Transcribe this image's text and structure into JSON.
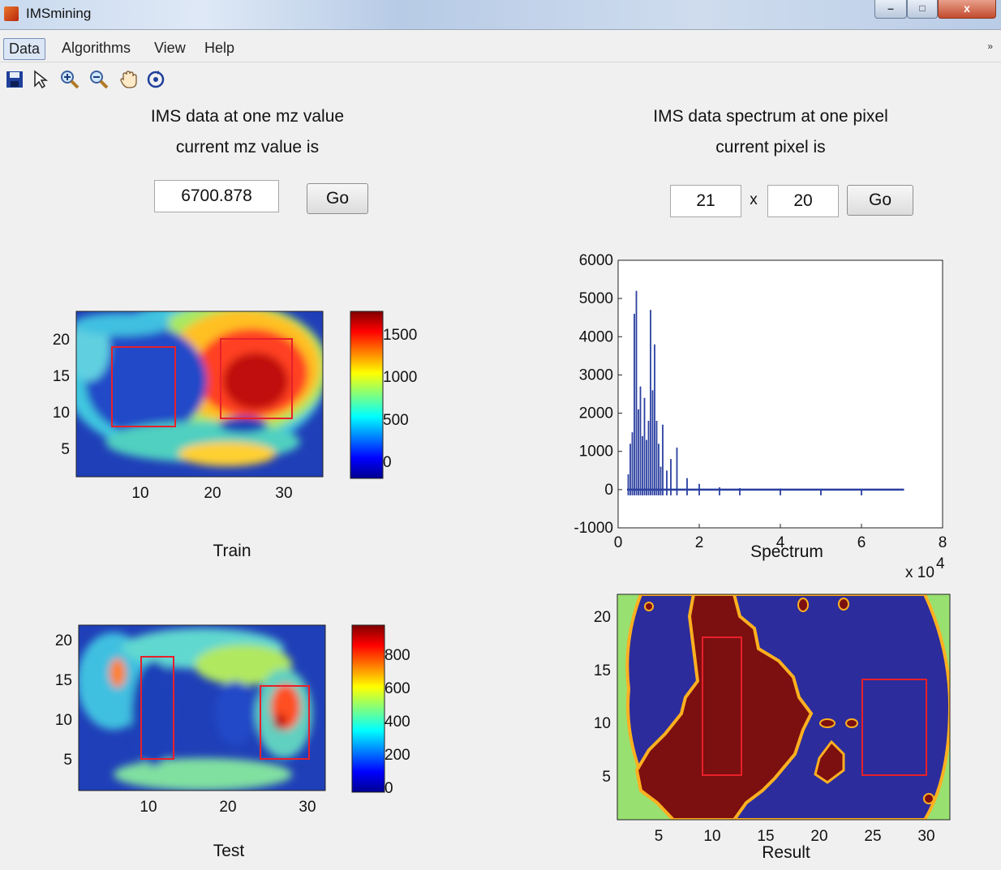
{
  "window": {
    "title": "IMSmining",
    "controls": {
      "min": "–",
      "max": "□",
      "close": "x"
    }
  },
  "menu": {
    "items": [
      "Data",
      "Algorithms",
      "View",
      "Help"
    ],
    "overflow_glyph": "»"
  },
  "toolbar": {
    "tools": [
      "save-icon",
      "pointer-icon",
      "zoom-in-icon",
      "zoom-out-icon",
      "pan-hand-icon",
      "rotate-3d-icon"
    ]
  },
  "left_panel": {
    "title": "IMS data at one mz value",
    "subtitle": "current mz value is",
    "mz_input_value": "6700.878",
    "go_label": "Go"
  },
  "right_panel": {
    "title": "IMS data spectrum at one pixel",
    "subtitle": "current pixel is",
    "pixel_x_value": "21",
    "separator": "x",
    "pixel_y_value": "20",
    "go_label": "Go"
  },
  "chart_data": [
    {
      "type": "heatmap",
      "title": "Train",
      "x_ticks": [
        "10",
        "20",
        "30"
      ],
      "y_ticks": [
        "20",
        "15",
        "10",
        "5"
      ],
      "colorbar_ticks": [
        "1500",
        "1000",
        "500",
        "0"
      ],
      "colorbar_range": [
        0,
        1800
      ],
      "colormap": "jet",
      "roi_boxes_color": "#e8202a"
    },
    {
      "type": "heatmap",
      "title": "Test",
      "x_ticks": [
        "10",
        "20",
        "30"
      ],
      "y_ticks": [
        "20",
        "15",
        "10",
        "5"
      ],
      "colorbar_ticks": [
        "800",
        "600",
        "400",
        "200",
        "0"
      ],
      "colorbar_range": [
        0,
        1000
      ],
      "colormap": "jet",
      "roi_boxes_color": "#e8202a"
    },
    {
      "type": "line",
      "xlabel": "Spectrum",
      "x_multiplier_label": "x 10",
      "x_multiplier_exp": "4",
      "xlim": [
        0,
        8
      ],
      "ylim": [
        -1000,
        6000
      ],
      "x_ticks": [
        "0",
        "2",
        "4",
        "6",
        "8"
      ],
      "y_ticks": [
        "6000",
        "5000",
        "4000",
        "3000",
        "2000",
        "1000",
        "0",
        "-1000"
      ],
      "line_color": "#2a3fa0",
      "peaks_x": [
        0.25,
        0.3,
        0.35,
        0.4,
        0.45,
        0.5,
        0.55,
        0.6,
        0.65,
        0.7,
        0.75,
        0.8,
        0.85,
        0.9,
        0.95,
        1.0,
        1.05,
        1.1,
        1.2,
        1.3,
        1.45,
        1.7,
        2.0,
        2.5,
        3.0,
        4.0,
        5.0,
        6.0
      ],
      "peaks_y": [
        400,
        1200,
        1500,
        4600,
        5200,
        2100,
        2700,
        1400,
        2400,
        1300,
        1800,
        4700,
        2600,
        3800,
        1800,
        1200,
        600,
        1700,
        500,
        800,
        1100,
        300,
        150,
        60,
        40,
        30,
        20,
        10
      ]
    },
    {
      "type": "heatmap",
      "title": "Result",
      "x_ticks": [
        "5",
        "10",
        "15",
        "20",
        "25",
        "30"
      ],
      "y_ticks": [
        "20",
        "15",
        "10",
        "5"
      ],
      "classes": [
        "background",
        "class-a",
        "class-b"
      ],
      "class_colors": [
        "#98e070",
        "#2c2c9c",
        "#7c1010"
      ],
      "roi_boxes_color": "#e8202a"
    }
  ]
}
